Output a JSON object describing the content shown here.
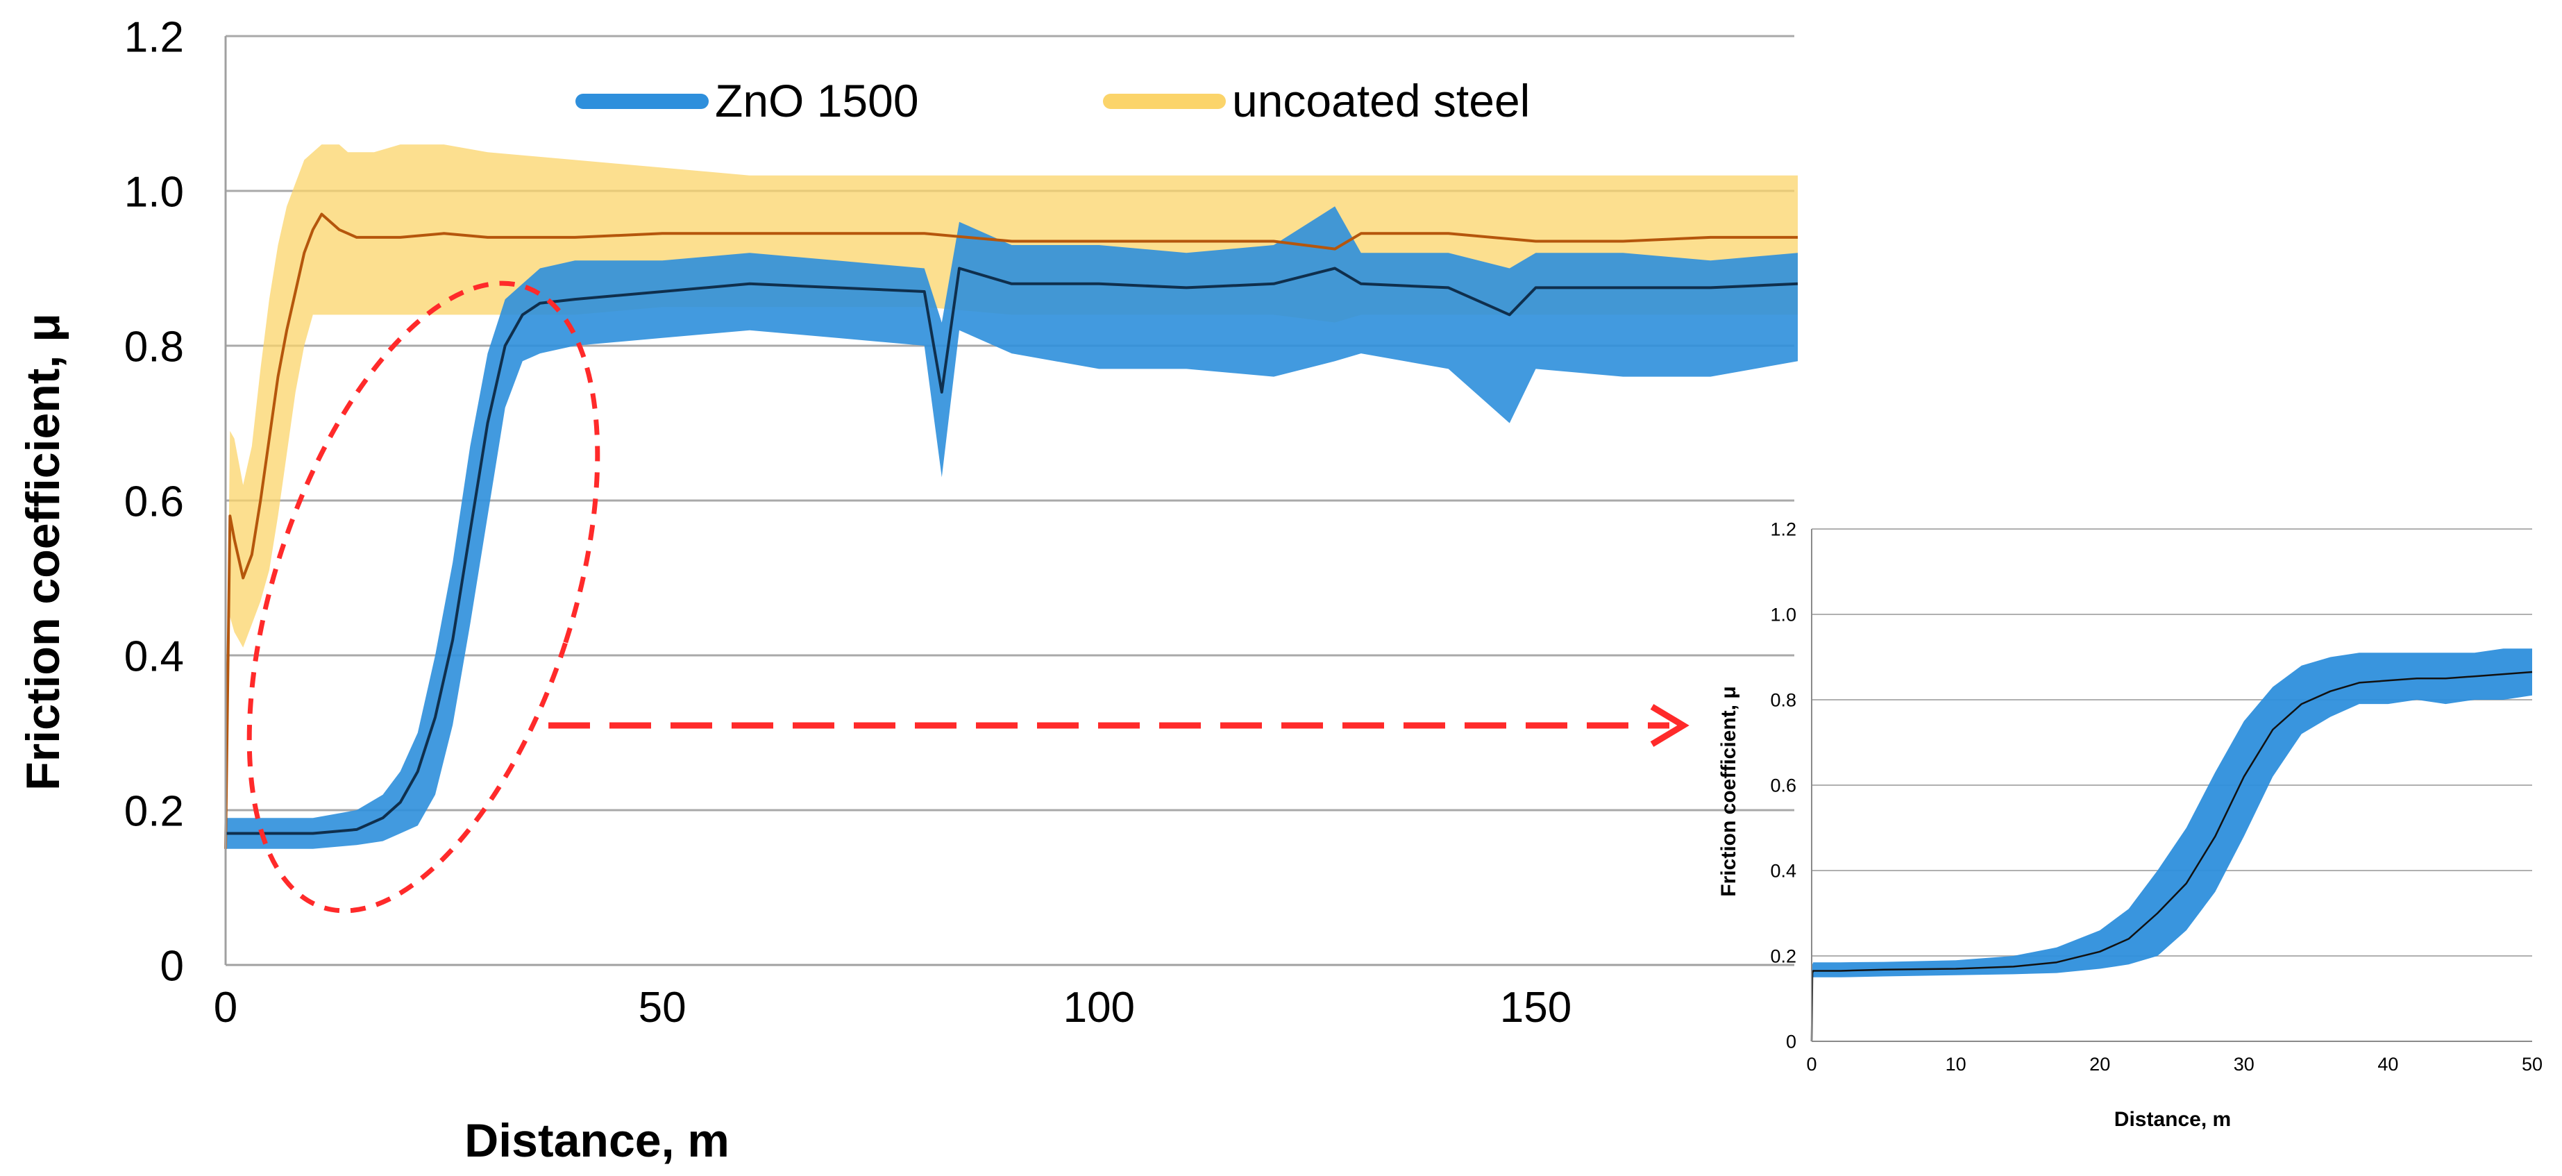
{
  "chart_data": [
    {
      "type": "line",
      "xlabel": "Distance, m",
      "ylabel": "Friction coefficient, μ",
      "xlim": [
        0,
        180
      ],
      "ylim": [
        0,
        1.2
      ],
      "x_ticks": [
        0,
        50,
        100,
        150
      ],
      "x_tick_labels": [
        "0",
        "50",
        "100",
        "150"
      ],
      "y_ticks": [
        0,
        0.2,
        0.4,
        0.6,
        0.8,
        1.0,
        1.2
      ],
      "y_tick_labels": [
        "0",
        "0.2",
        "0.4",
        "0.6",
        "0.8",
        "1.0",
        "1.2"
      ],
      "grid": "horizontal",
      "legend_position": "top",
      "series": [
        {
          "name": "ZnO 1500",
          "color": "#2e8fdc",
          "mean_color": "#0f2f4d",
          "x": [
            0,
            2,
            5,
            10,
            15,
            18,
            20,
            22,
            24,
            26,
            28,
            30,
            32,
            34,
            36,
            40,
            50,
            60,
            70,
            80,
            82,
            84,
            90,
            100,
            110,
            120,
            127,
            130,
            140,
            147,
            150,
            160,
            170,
            180
          ],
          "mean": [
            0.17,
            0.17,
            0.17,
            0.17,
            0.175,
            0.19,
            0.21,
            0.25,
            0.32,
            0.42,
            0.56,
            0.7,
            0.8,
            0.84,
            0.855,
            0.86,
            0.87,
            0.88,
            0.875,
            0.87,
            0.74,
            0.9,
            0.88,
            0.88,
            0.875,
            0.88,
            0.9,
            0.88,
            0.875,
            0.84,
            0.875,
            0.875,
            0.875,
            0.88
          ],
          "upper": [
            0.19,
            0.19,
            0.19,
            0.19,
            0.2,
            0.22,
            0.25,
            0.3,
            0.4,
            0.52,
            0.67,
            0.79,
            0.86,
            0.88,
            0.9,
            0.91,
            0.91,
            0.92,
            0.91,
            0.9,
            0.83,
            0.96,
            0.93,
            0.93,
            0.92,
            0.93,
            0.98,
            0.92,
            0.92,
            0.9,
            0.92,
            0.92,
            0.91,
            0.92
          ],
          "lower": [
            0.15,
            0.15,
            0.15,
            0.15,
            0.155,
            0.16,
            0.17,
            0.18,
            0.22,
            0.31,
            0.44,
            0.58,
            0.72,
            0.78,
            0.79,
            0.8,
            0.81,
            0.82,
            0.81,
            0.8,
            0.63,
            0.82,
            0.79,
            0.77,
            0.77,
            0.76,
            0.78,
            0.79,
            0.77,
            0.7,
            0.77,
            0.76,
            0.76,
            0.78
          ]
        },
        {
          "name": "uncoated steel",
          "color": "#fbd46a",
          "mean_color": "#b5560c",
          "x": [
            0,
            0.5,
            1,
            2,
            3,
            4,
            5,
            6,
            7,
            8,
            9,
            10,
            11,
            12,
            13,
            14,
            15,
            17,
            20,
            25,
            30,
            40,
            50,
            60,
            70,
            80,
            90,
            100,
            110,
            120,
            127,
            130,
            140,
            150,
            160,
            170,
            180
          ],
          "mean": [
            0.15,
            0.58,
            0.55,
            0.5,
            0.53,
            0.6,
            0.68,
            0.76,
            0.82,
            0.87,
            0.92,
            0.95,
            0.97,
            0.96,
            0.95,
            0.945,
            0.94,
            0.94,
            0.94,
            0.945,
            0.94,
            0.94,
            0.945,
            0.945,
            0.945,
            0.945,
            0.935,
            0.935,
            0.935,
            0.935,
            0.925,
            0.945,
            0.945,
            0.935,
            0.935,
            0.94,
            0.94
          ],
          "upper": [
            0.2,
            0.69,
            0.68,
            0.62,
            0.67,
            0.77,
            0.86,
            0.93,
            0.98,
            1.01,
            1.04,
            1.05,
            1.06,
            1.06,
            1.06,
            1.05,
            1.05,
            1.05,
            1.06,
            1.06,
            1.05,
            1.04,
            1.03,
            1.02,
            1.02,
            1.02,
            1.02,
            1.02,
            1.02,
            1.02,
            1.02,
            1.02,
            1.02,
            1.02,
            1.02,
            1.02,
            1.02
          ],
          "lower": [
            0.12,
            0.45,
            0.43,
            0.41,
            0.44,
            0.47,
            0.51,
            0.58,
            0.66,
            0.74,
            0.8,
            0.84,
            0.84,
            0.84,
            0.84,
            0.84,
            0.84,
            0.84,
            0.84,
            0.84,
            0.84,
            0.84,
            0.85,
            0.85,
            0.85,
            0.85,
            0.84,
            0.84,
            0.84,
            0.84,
            0.83,
            0.84,
            0.84,
            0.84,
            0.84,
            0.84,
            0.84
          ]
        }
      ]
    },
    {
      "type": "line",
      "xlabel": "Distance, m",
      "ylabel": "Friction coefficient, μ",
      "xlim": [
        0,
        50
      ],
      "ylim": [
        0,
        1.2
      ],
      "x_ticks": [
        0,
        10,
        20,
        30,
        40,
        50
      ],
      "x_tick_labels": [
        "0",
        "10",
        "20",
        "30",
        "40",
        "50"
      ],
      "y_ticks": [
        0,
        0.2,
        0.4,
        0.6,
        0.8,
        1.0,
        1.2
      ],
      "y_tick_labels": [
        "0",
        "0.2",
        "0.4",
        "0.6",
        "0.8",
        "1.0",
        "1.2"
      ],
      "grid": "horizontal",
      "series": [
        {
          "color": "#2e8fdc",
          "mean_color": "#111111",
          "x": [
            0,
            0.05,
            0.1,
            2,
            5,
            10,
            14,
            17,
            20,
            22,
            24,
            26,
            28,
            30,
            32,
            34,
            36,
            38,
            40,
            42,
            44,
            46,
            48,
            50
          ],
          "mean": [
            0,
            0.16,
            0.165,
            0.165,
            0.168,
            0.17,
            0.175,
            0.185,
            0.21,
            0.24,
            0.3,
            0.37,
            0.48,
            0.62,
            0.73,
            0.79,
            0.82,
            0.84,
            0.845,
            0.85,
            0.85,
            0.855,
            0.86,
            0.865
          ],
          "upper": [
            0,
            0.18,
            0.185,
            0.185,
            0.186,
            0.19,
            0.2,
            0.22,
            0.26,
            0.31,
            0.4,
            0.5,
            0.63,
            0.75,
            0.83,
            0.88,
            0.9,
            0.91,
            0.91,
            0.91,
            0.91,
            0.91,
            0.92,
            0.92
          ],
          "lower": [
            0,
            0.145,
            0.15,
            0.15,
            0.152,
            0.155,
            0.157,
            0.16,
            0.17,
            0.18,
            0.2,
            0.26,
            0.35,
            0.48,
            0.62,
            0.72,
            0.76,
            0.79,
            0.79,
            0.8,
            0.79,
            0.8,
            0.8,
            0.81
          ]
        }
      ]
    }
  ],
  "annotations": {
    "arrow_color": "#ff2a2a"
  }
}
